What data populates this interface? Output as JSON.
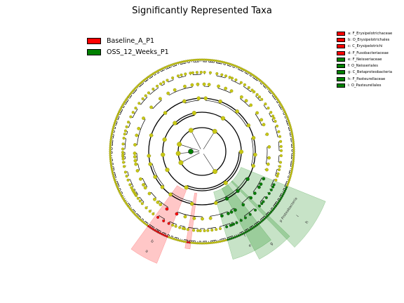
{
  "title": "Significantly Represented Taxa",
  "classes": [
    {
      "name": "Baseline_A_P1",
      "color": "#ff0000"
    },
    {
      "name": "OSS_12_Weeks_P1",
      "color": "#008000"
    }
  ],
  "clade_legend": [
    {
      "key": "a",
      "label": "a: F_Erysipelotrichaceae",
      "color": "#ff0000"
    },
    {
      "key": "b",
      "label": "b: O_Erysipelotrichales",
      "color": "#ff0000"
    },
    {
      "key": "c",
      "label": "c: C_Erysipelotrichi",
      "color": "#ff0000"
    },
    {
      "key": "d",
      "label": "d: F_Fusobacteriaceae",
      "color": "#ff0000"
    },
    {
      "key": "e",
      "label": "e: F_Neisseriaceae",
      "color": "#008000"
    },
    {
      "key": "f",
      "label": "f: O_Neisseriales",
      "color": "#008000"
    },
    {
      "key": "g",
      "label": "g: C_Betaproteobacteria",
      "color": "#008000"
    },
    {
      "key": "h",
      "label": "h: F_Pasteurellaceae",
      "color": "#008000"
    },
    {
      "key": "i",
      "label": "i: O_Pasteurellales",
      "color": "#008000"
    }
  ],
  "highlighted_sectors": [
    {
      "cls": "Baseline_A_P1",
      "labels": [
        "a",
        "b",
        "c"
      ]
    },
    {
      "cls": "Baseline_A_P1",
      "labels": [
        "d"
      ]
    },
    {
      "cls": "OSS_12_Weeks_P1",
      "labels": [
        "e",
        "f"
      ]
    },
    {
      "cls": "OSS_12_Weeks_P1",
      "labels": [
        "g"
      ]
    },
    {
      "cls": "OSS_12_Weeks_P1",
      "labels": [
        "h",
        "i",
        "p_Proteobacteria"
      ]
    }
  ],
  "colors": {
    "node": "#c8c815",
    "node_edge": "#7a7a00",
    "line": "#000000"
  }
}
